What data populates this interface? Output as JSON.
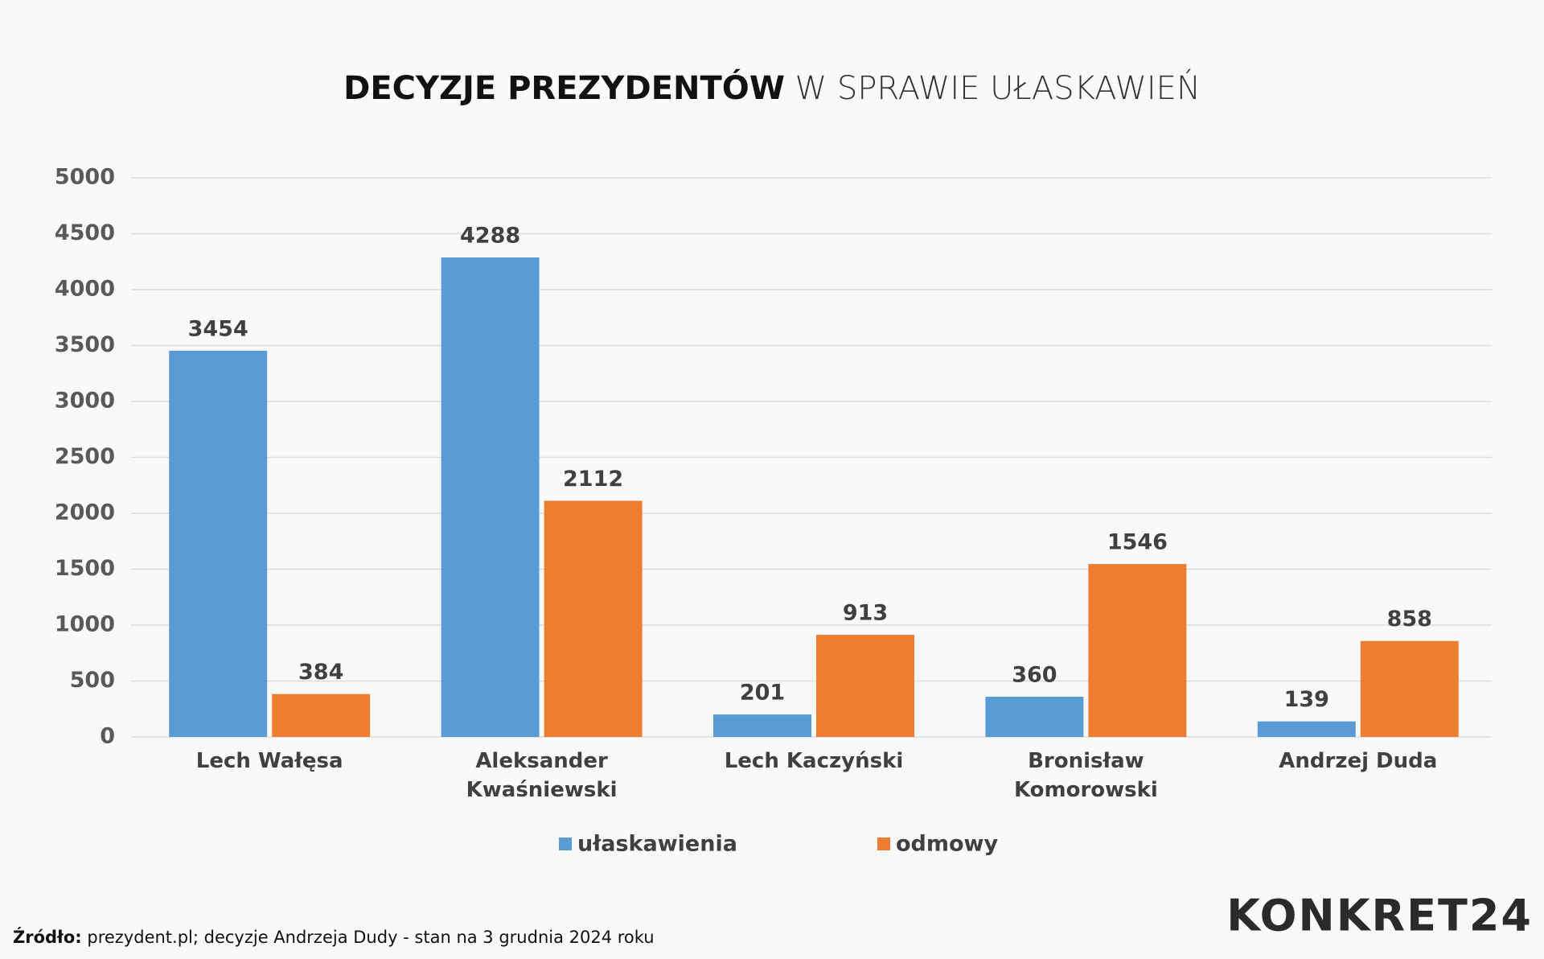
{
  "chart_data": {
    "type": "bar",
    "title": [
      "DECYZJE PREZYDENTÓW",
      "W SPRAWIE UŁASKAWIEŃ"
    ],
    "categories": [
      "Lech Wałęsa",
      "Aleksander Kwaśniewski",
      "Lech Kaczyński",
      "Bronisław Komorowski",
      "Andrzej Duda"
    ],
    "series": [
      {
        "name": "ułaskawienia",
        "color": "#5b9bd5",
        "values": [
          3454,
          4288,
          201,
          360,
          139
        ]
      },
      {
        "name": "odmowy",
        "color": "#ed7d31",
        "values": [
          384,
          2112,
          913,
          1546,
          858
        ]
      }
    ],
    "ylim": [
      0,
      5000
    ],
    "yticks": [
      0,
      500,
      1000,
      1500,
      2000,
      2500,
      3000,
      3500,
      4000,
      4500,
      5000
    ],
    "grid": true,
    "legend": "bottom"
  },
  "footer": {
    "source_label": "Źródło:",
    "source": "prezydent.pl; decyzje Andrzeja Dudy - stan na 3 grudnia 2024 roku",
    "logo": "KONKRET24"
  }
}
